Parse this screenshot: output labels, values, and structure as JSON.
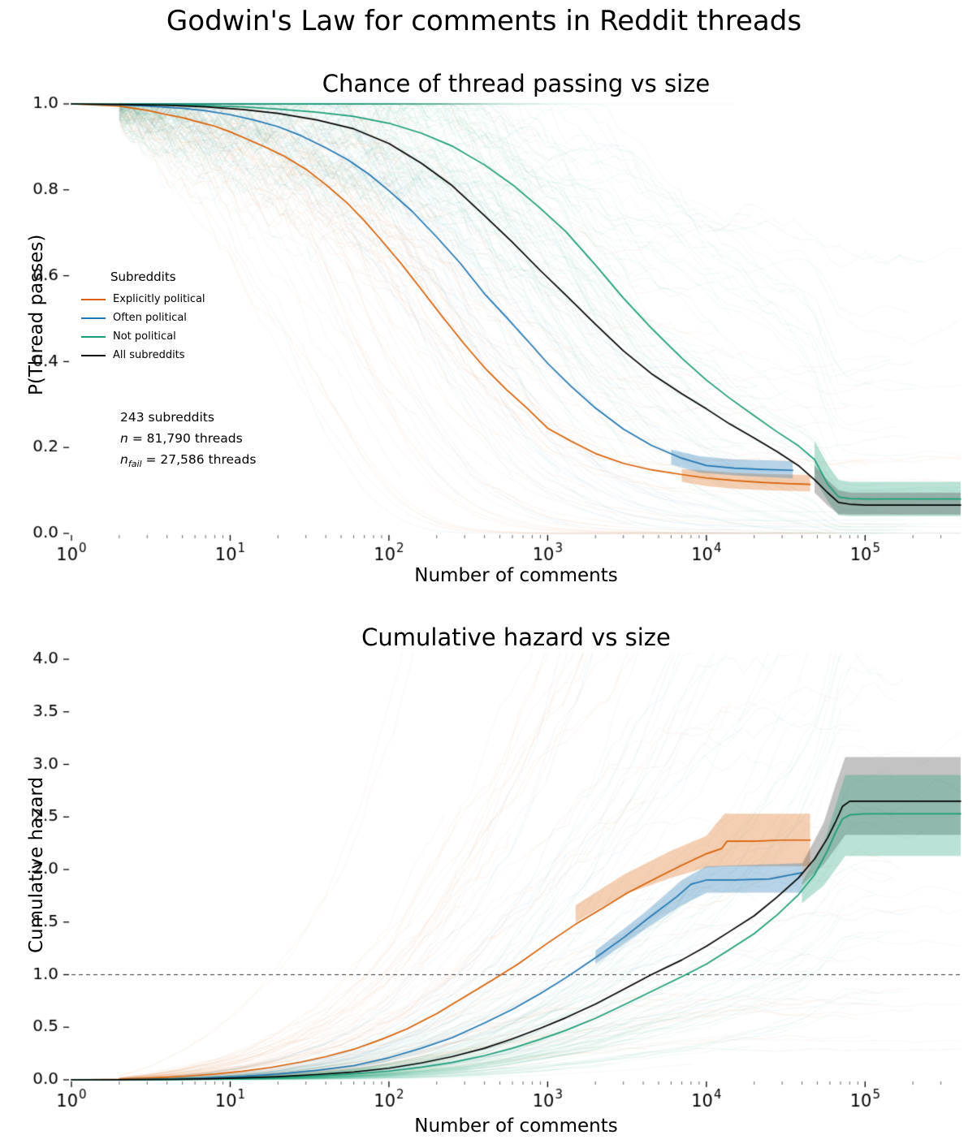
{
  "page_title": "Godwin's Law for comments in Reddit threads",
  "colors": {
    "explicitly_political": "#d95f02",
    "often_political": "#1f77b4",
    "not_political": "#1b9e77",
    "all_subreddits": "#000000",
    "background": "#ffffff"
  },
  "legend": {
    "title": "Subreddits",
    "entries": [
      {
        "label": "Explicitly political",
        "color": "#d95f02"
      },
      {
        "label": "Often political",
        "color": "#1f77b4"
      },
      {
        "label": "Not political",
        "color": "#1b9e77"
      },
      {
        "label": "All subreddits",
        "color": "#000000"
      }
    ]
  },
  "annotation": {
    "subreddits": "243 subreddits",
    "n_var": "n",
    "n_rest": " = 81,790 threads",
    "nfail_var": "n",
    "nfail_sub": "fail",
    "nfail_rest": " = 27,586 threads"
  },
  "spaghetti": {
    "seed": 42,
    "alpha": 0.065,
    "groups": [
      {
        "series": "Explicitly political",
        "color": "#d95f02",
        "count": 70,
        "sigma": 0.85
      },
      {
        "series": "Often political",
        "color": "#1f77b4",
        "count": 45,
        "sigma": 0.7
      },
      {
        "series": "Not political",
        "color": "#1b9e77",
        "count": 130,
        "sigma": 0.75
      }
    ]
  },
  "chart_data": [
    {
      "type": "line",
      "subtype": "survival",
      "title": "Chance of thread passing vs size",
      "xlabel": "Number of comments",
      "ylabel": "P(Thread passes)",
      "xscale": "log",
      "xlim": [
        1,
        400000
      ],
      "ylim": [
        0,
        1.0
      ],
      "grid": false,
      "legend_position": "upper-left-inside",
      "yticks": [
        0.0,
        0.2,
        0.4,
        0.6,
        0.8,
        1.0
      ],
      "ytick_labels": [
        "0.0",
        "0.2",
        "0.4",
        "0.6",
        "0.8",
        "1.0"
      ],
      "xticks": [
        {
          "value": 1,
          "exponent": "0"
        },
        {
          "value": 10,
          "exponent": "1"
        },
        {
          "value": 100,
          "exponent": "2"
        },
        {
          "value": 1000,
          "exponent": "3"
        },
        {
          "value": 10000,
          "exponent": "4"
        },
        {
          "value": 100000,
          "exponent": "5"
        }
      ],
      "series": [
        {
          "name": "Explicitly political",
          "color": "#d95f02",
          "x": [
            1,
            2,
            3,
            4,
            5,
            6,
            8,
            10,
            13,
            17,
            22,
            30,
            40,
            55,
            70,
            90,
            120,
            160,
            220,
            300,
            400,
            550,
            750,
            1000,
            1400,
            2000,
            3000,
            4500,
            7000,
            10000,
            15000,
            22000,
            32000,
            45000
          ],
          "y": [
            1.0,
            0.995,
            0.985,
            0.975,
            0.968,
            0.96,
            0.948,
            0.935,
            0.917,
            0.898,
            0.878,
            0.848,
            0.812,
            0.768,
            0.728,
            0.682,
            0.627,
            0.568,
            0.502,
            0.44,
            0.386,
            0.335,
            0.29,
            0.245,
            0.215,
            0.186,
            0.163,
            0.148,
            0.137,
            0.129,
            0.123,
            0.119,
            0.116,
            0.114
          ]
        },
        {
          "name": "Often political",
          "color": "#1f77b4",
          "x": [
            1,
            2,
            3,
            5,
            7,
            10,
            14,
            20,
            28,
            40,
            55,
            75,
            100,
            140,
            200,
            280,
            400,
            550,
            750,
            1000,
            1400,
            2000,
            3000,
            4500,
            7000,
            10000,
            15000,
            22000,
            35000
          ],
          "y": [
            1.0,
            0.998,
            0.995,
            0.99,
            0.984,
            0.975,
            0.963,
            0.947,
            0.926,
            0.898,
            0.87,
            0.836,
            0.798,
            0.75,
            0.69,
            0.63,
            0.558,
            0.503,
            0.448,
            0.396,
            0.343,
            0.292,
            0.243,
            0.205,
            0.175,
            0.158,
            0.152,
            0.149,
            0.147
          ]
        },
        {
          "name": "Not political",
          "color": "#1b9e77",
          "x": [
            1,
            2,
            4,
            7,
            12,
            20,
            35,
            60,
            100,
            160,
            250,
            400,
            600,
            900,
            1300,
            2000,
            3000,
            4500,
            7000,
            10000,
            14000,
            20000,
            28000,
            38000,
            48000,
            58000,
            68000,
            80000,
            100000,
            400000
          ],
          "y": [
            1.0,
            1.0,
            0.998,
            0.996,
            0.993,
            0.988,
            0.981,
            0.971,
            0.955,
            0.932,
            0.902,
            0.858,
            0.812,
            0.757,
            0.703,
            0.625,
            0.548,
            0.478,
            0.408,
            0.357,
            0.315,
            0.274,
            0.236,
            0.204,
            0.172,
            0.115,
            0.085,
            0.081,
            0.08,
            0.08
          ]
        },
        {
          "name": "All subreddits",
          "color": "#000000",
          "x": [
            1,
            2,
            4,
            7,
            12,
            20,
            35,
            60,
            100,
            160,
            250,
            400,
            600,
            900,
            1300,
            2000,
            3000,
            4500,
            7000,
            10000,
            14000,
            20000,
            28000,
            38000,
            48000,
            58000,
            68000,
            80000,
            100000,
            400000
          ],
          "y": [
            1.0,
            0.999,
            0.997,
            0.993,
            0.987,
            0.978,
            0.963,
            0.942,
            0.908,
            0.862,
            0.81,
            0.74,
            0.678,
            0.612,
            0.555,
            0.487,
            0.425,
            0.372,
            0.325,
            0.29,
            0.255,
            0.222,
            0.19,
            0.158,
            0.125,
            0.095,
            0.072,
            0.068,
            0.066,
            0.066
          ]
        }
      ],
      "bands": [
        {
          "color": "#d95f02",
          "alpha": 0.3,
          "x": [
            7000,
            10000,
            15000,
            25000,
            45000
          ],
          "lower": [
            0.12,
            0.11,
            0.104,
            0.1,
            0.098
          ],
          "upper": [
            0.15,
            0.146,
            0.141,
            0.138,
            0.136
          ]
        },
        {
          "color": "#1f77b4",
          "alpha": 0.32,
          "x": [
            6000,
            9000,
            15000,
            25000,
            35000
          ],
          "lower": [
            0.16,
            0.142,
            0.135,
            0.131,
            0.128
          ],
          "upper": [
            0.195,
            0.18,
            0.172,
            0.17,
            0.168
          ]
        },
        {
          "color": "#1b9e77",
          "alpha": 0.3,
          "x": [
            48000,
            58000,
            68000,
            80000,
            400000
          ],
          "lower": [
            0.13,
            0.075,
            0.042,
            0.04,
            0.04
          ],
          "upper": [
            0.215,
            0.16,
            0.125,
            0.12,
            0.12
          ]
        },
        {
          "color": "#444444",
          "alpha": 0.32,
          "x": [
            48000,
            58000,
            68000,
            80000,
            400000
          ],
          "lower": [
            0.095,
            0.065,
            0.045,
            0.044,
            0.044
          ],
          "upper": [
            0.158,
            0.125,
            0.1,
            0.095,
            0.095
          ]
        }
      ]
    },
    {
      "type": "line",
      "subtype": "hazard",
      "title": "Cumulative hazard vs size",
      "xlabel": "Number of comments",
      "ylabel": "Cumulative hazard",
      "xscale": "log",
      "xlim": [
        1,
        400000
      ],
      "ylim": [
        0,
        4.0
      ],
      "grid": false,
      "reference_line": 1.0,
      "yticks": [
        0.0,
        0.5,
        1.0,
        1.5,
        2.0,
        2.5,
        3.0,
        3.5,
        4.0
      ],
      "ytick_labels": [
        "0.0",
        "0.5",
        "1.0",
        "1.5",
        "2.0",
        "2.5",
        "3.0",
        "3.5",
        "4.0"
      ],
      "xticks": [
        {
          "value": 1,
          "exponent": "0"
        },
        {
          "value": 10,
          "exponent": "1"
        },
        {
          "value": 100,
          "exponent": "2"
        },
        {
          "value": 1000,
          "exponent": "3"
        },
        {
          "value": 10000,
          "exponent": "4"
        },
        {
          "value": 100000,
          "exponent": "5"
        }
      ],
      "series": [
        {
          "name": "Explicitly political",
          "color": "#d95f02",
          "x": [
            1,
            2,
            3,
            5,
            8,
            12,
            18,
            28,
            40,
            60,
            90,
            130,
            200,
            300,
            450,
            650,
            1000,
            1500,
            2200,
            3200,
            5000,
            7000,
            10000,
            12500,
            13500,
            20000,
            30000,
            45000
          ],
          "y": [
            0,
            0.005,
            0.015,
            0.033,
            0.055,
            0.082,
            0.118,
            0.17,
            0.22,
            0.29,
            0.385,
            0.485,
            0.63,
            0.79,
            0.95,
            1.1,
            1.3,
            1.48,
            1.63,
            1.78,
            1.93,
            2.04,
            2.15,
            2.2,
            2.27,
            2.27,
            2.28,
            2.28
          ]
        },
        {
          "name": "Often political",
          "color": "#1f77b4",
          "x": [
            1,
            2,
            4,
            7,
            12,
            20,
            35,
            60,
            100,
            160,
            250,
            400,
            600,
            900,
            1300,
            2000,
            3000,
            4500,
            6500,
            8000,
            10000,
            15000,
            25000,
            40000
          ],
          "y": [
            0,
            0.002,
            0.006,
            0.016,
            0.032,
            0.055,
            0.09,
            0.135,
            0.21,
            0.3,
            0.4,
            0.54,
            0.67,
            0.82,
            0.97,
            1.16,
            1.35,
            1.56,
            1.74,
            1.86,
            1.9,
            1.9,
            1.91,
            1.97
          ]
        },
        {
          "name": "Not political",
          "color": "#1b9e77",
          "x": [
            1,
            2,
            4,
            7,
            12,
            20,
            35,
            60,
            100,
            160,
            250,
            400,
            600,
            900,
            1300,
            2000,
            3000,
            4500,
            7000,
            10000,
            14000,
            20000,
            28000,
            38000,
            48000,
            58000,
            65000,
            72000,
            80000,
            100000,
            400000
          ],
          "y": [
            0,
            0.001,
            0.003,
            0.007,
            0.013,
            0.022,
            0.037,
            0.057,
            0.083,
            0.12,
            0.165,
            0.23,
            0.3,
            0.385,
            0.47,
            0.585,
            0.71,
            0.84,
            0.98,
            1.1,
            1.24,
            1.39,
            1.57,
            1.76,
            1.95,
            2.18,
            2.35,
            2.48,
            2.52,
            2.53,
            2.53
          ]
        },
        {
          "name": "All subreddits",
          "color": "#000000",
          "x": [
            1,
            2,
            4,
            7,
            12,
            20,
            35,
            60,
            100,
            160,
            250,
            400,
            600,
            900,
            1300,
            2000,
            3000,
            4500,
            7000,
            10000,
            14000,
            20000,
            28000,
            38000,
            48000,
            58000,
            65000,
            72000,
            80000,
            100000,
            400000
          ],
          "y": [
            0,
            0.001,
            0.004,
            0.009,
            0.018,
            0.03,
            0.05,
            0.075,
            0.11,
            0.16,
            0.22,
            0.3,
            0.39,
            0.49,
            0.59,
            0.72,
            0.86,
            1.0,
            1.14,
            1.27,
            1.41,
            1.56,
            1.74,
            1.92,
            2.1,
            2.3,
            2.45,
            2.6,
            2.65,
            2.65,
            2.65
          ]
        }
      ],
      "bands": [
        {
          "color": "#d95f02",
          "alpha": 0.3,
          "x": [
            1500,
            3000,
            6000,
            10000,
            13000,
            45000
          ],
          "lower": [
            1.5,
            1.76,
            1.92,
            2.02,
            2.03,
            2.03
          ],
          "upper": [
            1.66,
            1.95,
            2.18,
            2.32,
            2.53,
            2.53
          ]
        },
        {
          "color": "#1f77b4",
          "alpha": 0.32,
          "x": [
            2000,
            4000,
            7000,
            10000,
            40000
          ],
          "lower": [
            1.1,
            1.42,
            1.66,
            1.78,
            1.78
          ],
          "upper": [
            1.23,
            1.58,
            1.9,
            2.03,
            2.06
          ]
        },
        {
          "color": "#444444",
          "alpha": 0.32,
          "x": [
            40000,
            55000,
            65000,
            75000,
            400000
          ],
          "lower": [
            1.85,
            2.05,
            2.2,
            2.33,
            2.33
          ],
          "upper": [
            2.05,
            2.45,
            2.8,
            3.07,
            3.07
          ]
        },
        {
          "color": "#1b9e77",
          "alpha": 0.3,
          "x": [
            40000,
            55000,
            65000,
            75000,
            400000
          ],
          "lower": [
            1.68,
            1.85,
            2.0,
            2.13,
            2.13
          ],
          "upper": [
            1.88,
            2.25,
            2.6,
            2.9,
            2.9
          ]
        }
      ]
    }
  ]
}
